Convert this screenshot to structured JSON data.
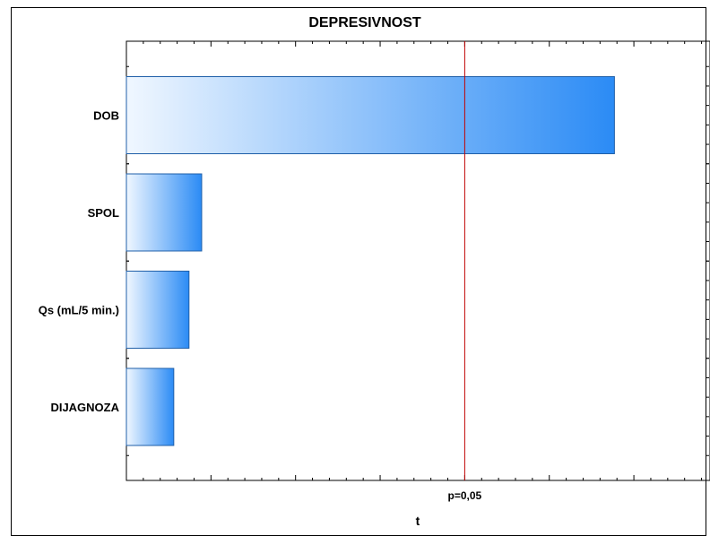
{
  "chart_data": {
    "type": "bar",
    "orientation": "horizontal",
    "title": "DEPRESIVNOST",
    "xlabel": "t",
    "ylabel": "",
    "categories": [
      "DOB",
      "SPOL",
      "Qs (mL/5 min.)",
      "DIJAGNOZA"
    ],
    "values": [
      5.77,
      0.89,
      0.74,
      0.56
    ],
    "xlim": [
      0,
      6.9
    ],
    "threshold": {
      "label": "p=0,05",
      "value": 4.0,
      "color": "#c00000"
    },
    "bar_fill_start": "#f0f7ff",
    "bar_fill_end": "#2b8bf5",
    "bar_stroke": "#1f5fa8",
    "grid": false
  }
}
